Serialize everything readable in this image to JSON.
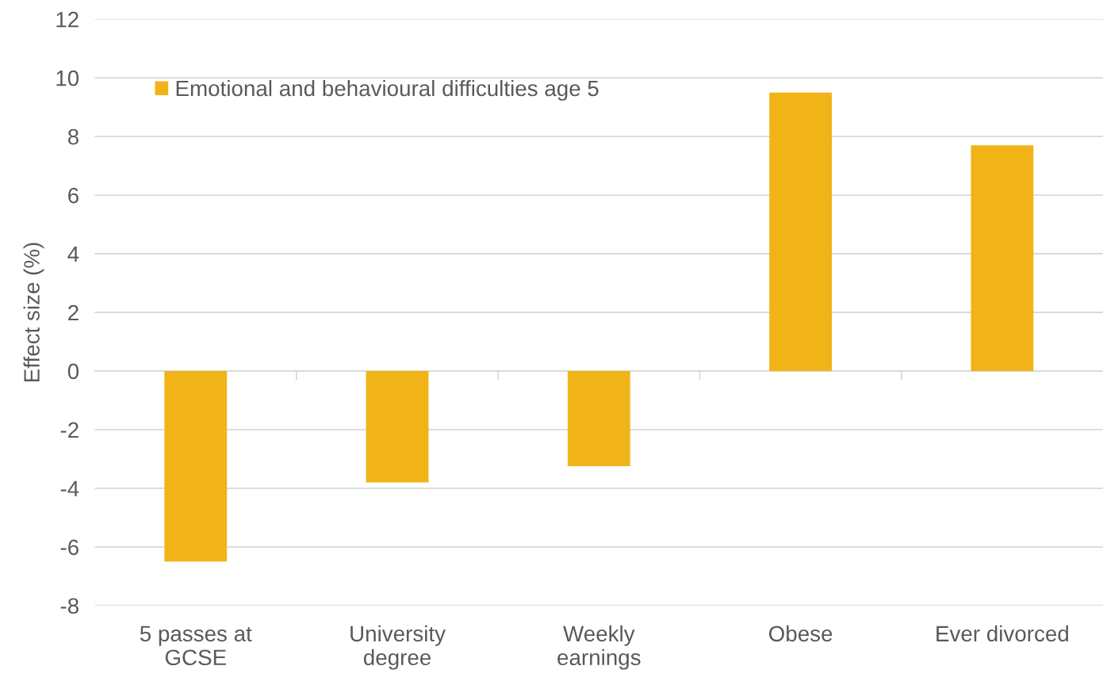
{
  "chart_data": {
    "type": "bar",
    "ylabel": "Effect size (%)",
    "categories": [
      "5 passes at\nGCSE",
      "University\ndegree",
      "Weekly\nearnings",
      "Obese",
      "Ever divorced"
    ],
    "series": [
      {
        "name": "Emotional and behavioural difficulties age 5",
        "color": "#f0b418",
        "values": [
          -6.5,
          -3.8,
          -3.25,
          9.5,
          7.7
        ]
      }
    ],
    "ylim": [
      -8,
      12
    ],
    "yticks": [
      -8,
      -6,
      -4,
      -2,
      0,
      2,
      4,
      6,
      8,
      10,
      12
    ],
    "grid": "y",
    "legend": "top left"
  }
}
